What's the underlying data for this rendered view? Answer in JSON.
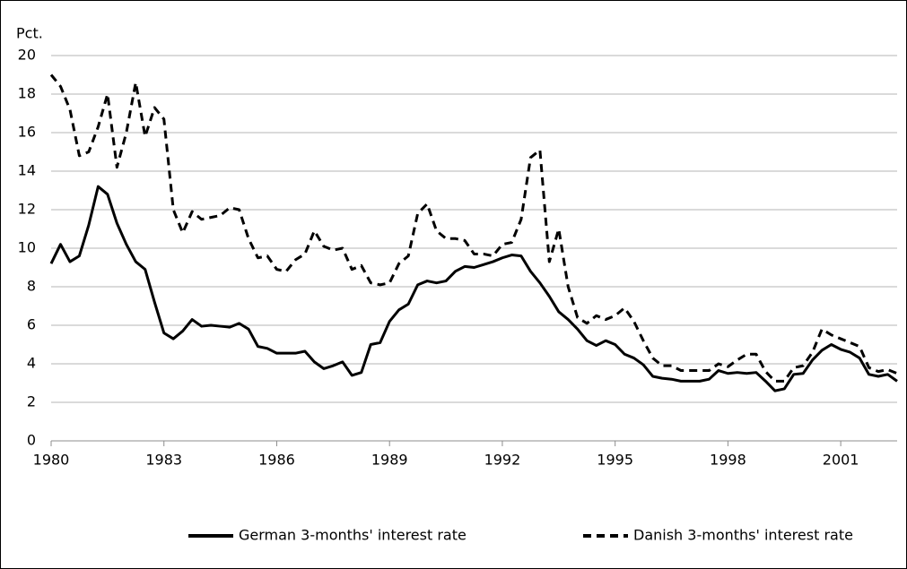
{
  "chart_data": {
    "type": "line",
    "y_label": "Pct.",
    "x": [
      1980,
      1980.25,
      1980.5,
      1980.75,
      1981,
      1981.25,
      1981.5,
      1981.75,
      1982,
      1982.25,
      1982.5,
      1982.75,
      1983,
      1983.25,
      1983.5,
      1983.75,
      1984,
      1984.25,
      1984.5,
      1984.75,
      1985,
      1985.25,
      1985.5,
      1985.75,
      1986,
      1986.25,
      1986.5,
      1986.75,
      1987,
      1987.25,
      1987.5,
      1987.75,
      1988,
      1988.25,
      1988.5,
      1988.75,
      1989,
      1989.25,
      1989.5,
      1989.75,
      1990,
      1990.25,
      1990.5,
      1990.75,
      1991,
      1991.25,
      1991.5,
      1991.75,
      1992,
      1992.25,
      1992.5,
      1992.75,
      1993,
      1993.25,
      1993.5,
      1993.75,
      1994,
      1994.25,
      1994.5,
      1994.75,
      1995,
      1995.25,
      1995.5,
      1995.75,
      1996,
      1996.25,
      1996.5,
      1996.75,
      1997,
      1997.25,
      1997.5,
      1997.75,
      1998,
      1998.25,
      1998.5,
      1998.75,
      1999,
      1999.25,
      1999.5,
      1999.75,
      2000,
      2000.25,
      2000.5,
      2000.75,
      2001,
      2001.25,
      2001.5,
      2001.75,
      2002,
      2002.25,
      2002.5
    ],
    "series": [
      {
        "name": "German 3-months' interest rate",
        "color": "#000000",
        "dash": "solid",
        "values": [
          9.2,
          10.2,
          9.3,
          9.6,
          11.2,
          13.2,
          12.8,
          11.3,
          10.2,
          9.3,
          8.9,
          7.2,
          5.6,
          5.3,
          5.7,
          6.3,
          5.95,
          6.0,
          5.95,
          5.9,
          6.1,
          5.8,
          4.9,
          4.8,
          4.55,
          4.55,
          4.55,
          4.65,
          4.1,
          3.75,
          3.9,
          4.1,
          3.4,
          3.55,
          5.0,
          5.1,
          6.2,
          6.8,
          7.1,
          8.1,
          8.3,
          8.2,
          8.3,
          8.8,
          9.05,
          9.0,
          9.15,
          9.3,
          9.5,
          9.65,
          9.6,
          8.8,
          8.2,
          7.5,
          6.7,
          6.3,
          5.8,
          5.2,
          4.95,
          5.2,
          5.0,
          4.5,
          4.3,
          3.95,
          3.35,
          3.25,
          3.2,
          3.1,
          3.1,
          3.1,
          3.2,
          3.65,
          3.5,
          3.55,
          3.5,
          3.55,
          3.1,
          2.6,
          2.7,
          3.45,
          3.5,
          4.2,
          4.7,
          5.0,
          4.75,
          4.6,
          4.3,
          3.45,
          3.35,
          3.45,
          3.1
        ]
      },
      {
        "name": "Danish 3-months' interest rate",
        "color": "#000000",
        "dash": "dashed",
        "values": [
          19.0,
          18.4,
          17.2,
          14.8,
          15.0,
          16.3,
          18.0,
          14.2,
          16.0,
          18.6,
          15.8,
          17.3,
          16.7,
          12.0,
          10.8,
          11.9,
          11.5,
          11.6,
          11.7,
          12.1,
          12.0,
          10.5,
          9.5,
          9.6,
          8.9,
          8.8,
          9.4,
          9.7,
          10.9,
          10.1,
          9.9,
          10.0,
          8.9,
          9.1,
          8.2,
          8.1,
          8.2,
          9.2,
          9.6,
          11.8,
          12.3,
          10.9,
          10.5,
          10.5,
          10.4,
          9.7,
          9.7,
          9.6,
          10.2,
          10.3,
          11.5,
          14.7,
          15.1,
          9.3,
          11.0,
          8.0,
          6.4,
          6.1,
          6.5,
          6.3,
          6.5,
          6.9,
          6.2,
          5.2,
          4.3,
          3.9,
          3.9,
          3.65,
          3.65,
          3.65,
          3.65,
          4.0,
          3.85,
          4.2,
          4.5,
          4.5,
          3.6,
          3.1,
          3.1,
          3.8,
          3.9,
          4.6,
          5.8,
          5.5,
          5.3,
          5.1,
          4.9,
          3.8,
          3.6,
          3.7,
          3.5
        ]
      }
    ],
    "xlim": [
      1980,
      2002.5
    ],
    "xticks": [
      1980,
      1983,
      1986,
      1989,
      1992,
      1995,
      1998,
      2001
    ],
    "ylim": [
      0,
      20
    ],
    "yticks": [
      0,
      2,
      4,
      6,
      8,
      10,
      12,
      14,
      16,
      18,
      20
    ],
    "grid": true,
    "legend": "bottom"
  }
}
